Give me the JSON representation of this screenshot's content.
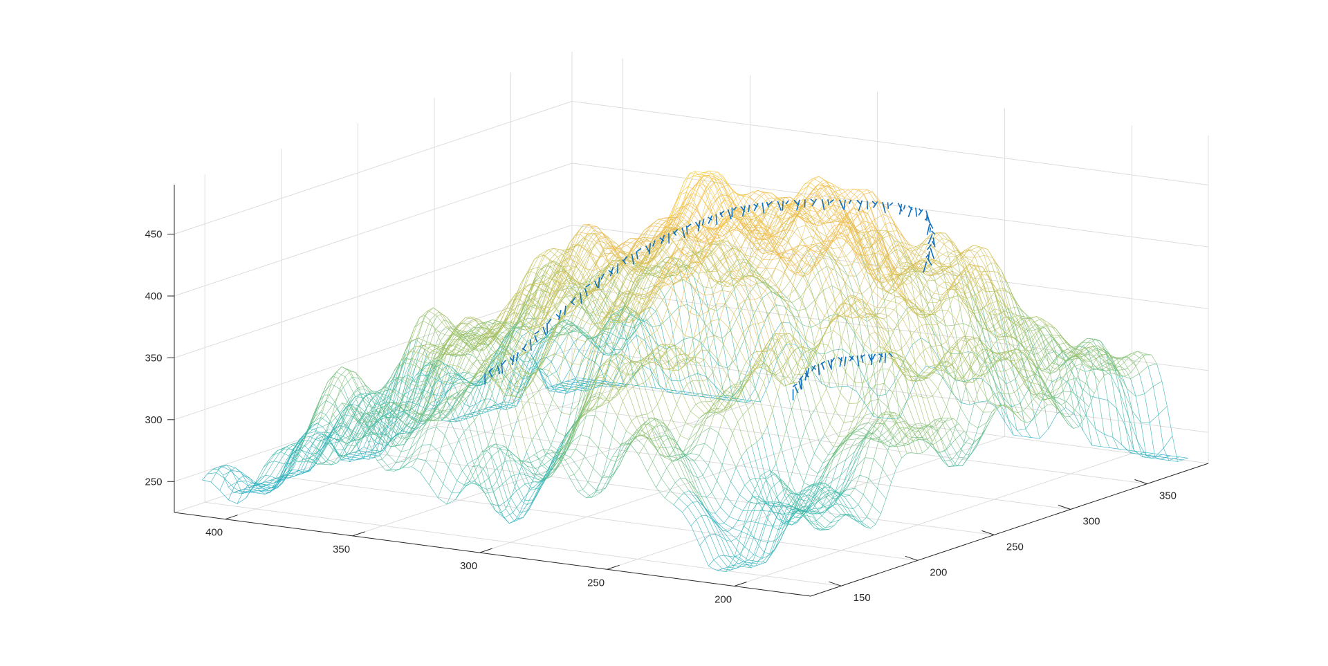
{
  "chart_data": {
    "type": "surface-mesh-3d",
    "title": "",
    "xlabel": "",
    "ylabel": "",
    "zlabel": "",
    "grid": true,
    "colormap": [
      "#1fa9c9",
      "#3cb9a8",
      "#8fc06a",
      "#c9c25a",
      "#f0b94a",
      "#f7d33f"
    ],
    "path_color": "#0f6fbf",
    "x_axis": {
      "lim": [
        170,
        420
      ],
      "ticks": [
        200,
        250,
        300,
        350,
        400
      ]
    },
    "y_axis": {
      "lim": [
        130,
        390
      ],
      "ticks": [
        150,
        200,
        250,
        300,
        350
      ]
    },
    "z_axis": {
      "lim": [
        225,
        490
      ],
      "ticks": [
        250,
        300,
        350,
        400,
        450
      ]
    },
    "surface": {
      "x_range": [
        175,
        415
      ],
      "y_range": [
        140,
        385
      ],
      "z_range": [
        230,
        470
      ]
    },
    "path_series": [
      {
        "segment": "main",
        "points": [
          [
            340,
            200,
            330
          ],
          [
            333,
            210,
            345
          ],
          [
            326,
            220,
            370
          ],
          [
            318,
            232,
            395
          ],
          [
            310,
            243,
            415
          ],
          [
            302,
            254,
            430
          ],
          [
            294,
            264,
            440
          ],
          [
            285,
            270,
            450
          ],
          [
            275,
            276,
            455
          ],
          [
            262,
            283,
            458
          ],
          [
            248,
            290,
            458
          ],
          [
            236,
            297,
            456
          ],
          [
            228,
            302,
            450
          ],
          [
            224,
            300,
            430
          ],
          [
            224,
            295,
            410
          ]
        ]
      },
      {
        "segment": "tail",
        "points": [
          [
            240,
            235,
            330
          ],
          [
            238,
            242,
            345
          ],
          [
            234,
            252,
            350
          ],
          [
            228,
            262,
            350
          ],
          [
            222,
            270,
            350
          ]
        ]
      }
    ]
  }
}
